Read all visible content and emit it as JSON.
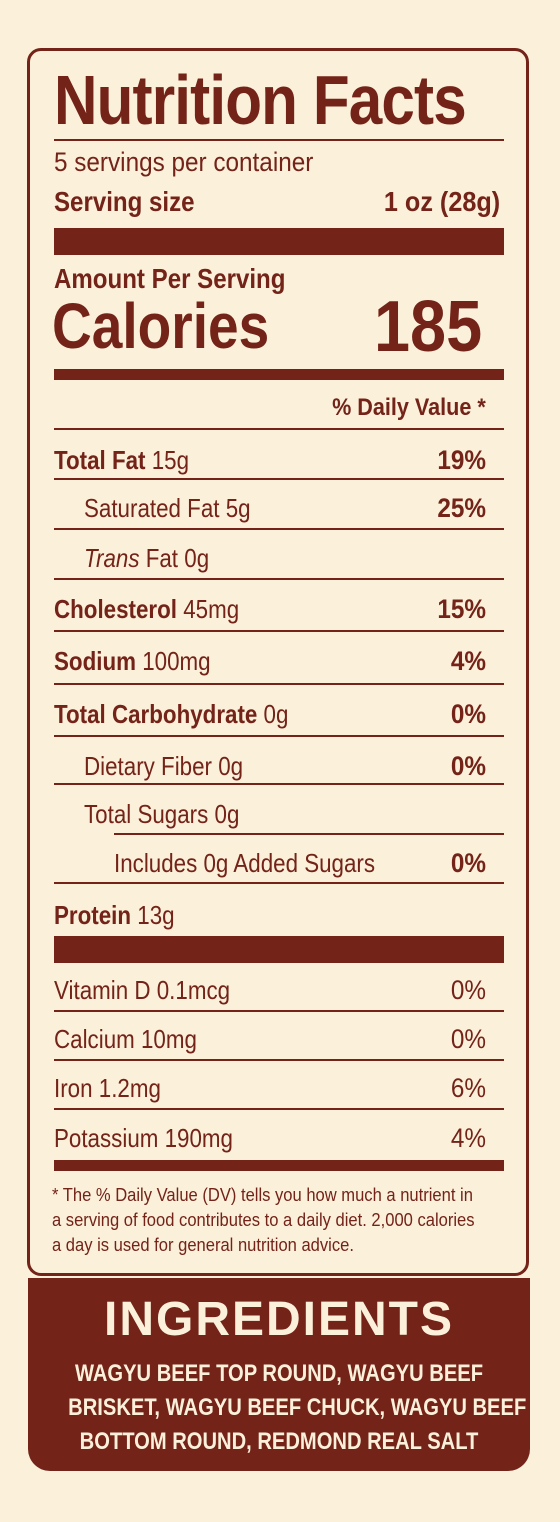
{
  "label": {
    "title": "Nutrition Facts",
    "servings_per_container": "5 servings per container",
    "serving_size_label": "Serving size",
    "serving_size_value": "1 oz (28g)",
    "amount_per_serving": "Amount Per Serving",
    "calories_label": "Calories",
    "calories_value": "185",
    "daily_value_header": "% Daily Value *",
    "nutrients": [
      {
        "name": "Total Fat",
        "amount": "15g",
        "dv": "19%"
      },
      {
        "name": "Saturated Fat",
        "amount": "5g",
        "dv": "25%"
      },
      {
        "name_italic": "Trans",
        "name": "Fat",
        "amount": "0g",
        "dv": ""
      },
      {
        "name": "Cholesterol",
        "amount": "45mg",
        "dv": "15%"
      },
      {
        "name": "Sodium",
        "amount": "100mg",
        "dv": "4%"
      },
      {
        "name": "Total Carbohydrate",
        "amount": "0g",
        "dv": "0%"
      },
      {
        "name": "Dietary Fiber",
        "amount": "0g",
        "dv": "0%"
      },
      {
        "name": "Total Sugars",
        "amount": "0g",
        "dv": ""
      },
      {
        "name": "Includes 0g Added Sugars",
        "amount": "",
        "dv": "0%"
      },
      {
        "name": "Protein",
        "amount": "13g",
        "dv": ""
      }
    ],
    "vitamins": [
      {
        "name": "Vitamin D",
        "amount": "0.1mcg",
        "dv": "0%"
      },
      {
        "name": "Calcium",
        "amount": "10mg",
        "dv": "0%"
      },
      {
        "name": "Iron",
        "amount": "1.2mg",
        "dv": "6%"
      },
      {
        "name": "Potassium",
        "amount": "190mg",
        "dv": "4%"
      }
    ],
    "footnote": "* The % Daily Value (DV) tells you how much a nutrient in a serving of food contributes to a daily diet. 2,000 calories a day is used for general nutrition advice."
  },
  "ingredients": {
    "title": "INGREDIENTS",
    "lines": [
      "WAGYU BEEF TOP ROUND, WAGYU BEEF",
      "BRISKET, WAGYU BEEF CHUCK, WAGYU BEEF",
      "BOTTOM ROUND, REDMOND REAL SALT"
    ]
  },
  "colors": {
    "brand": "#742319",
    "background": "#fbf0da"
  }
}
